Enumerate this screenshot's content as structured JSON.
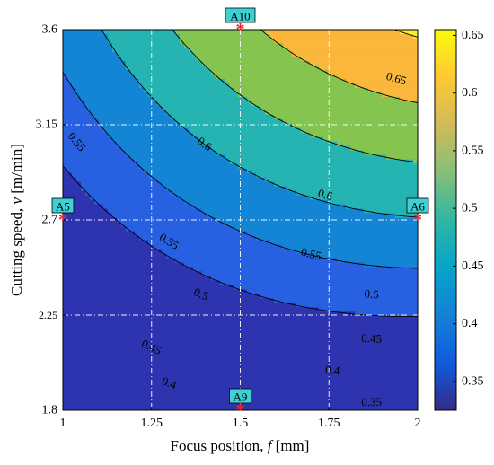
{
  "chart_data": {
    "type": "heatmap",
    "subtype": "filled-contour",
    "xlabel": "Focus position, ",
    "xlabel_var": "f",
    "xlabel_unit": "[mm]",
    "ylabel": "Cutting speed, ",
    "ylabel_var": "v",
    "ylabel_unit": "[m/min]",
    "xlim": [
      1,
      2
    ],
    "ylim": [
      1.8,
      3.6
    ],
    "x_ticks": [
      "1",
      "1.25",
      "1.5",
      "1.75",
      "2"
    ],
    "y_ticks": [
      "1.8",
      "2.25",
      "2.7",
      "3.15",
      "3.6"
    ],
    "grid": true,
    "colorbar": {
      "range": [
        0.325,
        0.655
      ],
      "ticks": [
        "0.35",
        "0.4",
        "0.45",
        "0.5",
        "0.55",
        "0.6",
        "0.65"
      ],
      "colormap": "parula"
    },
    "contour_levels": [
      0.35,
      0.4,
      0.45,
      0.5,
      0.55,
      0.6,
      0.65
    ],
    "contour_labels": [
      {
        "text": "0.35",
        "level": 0.35,
        "x": 1.87,
        "y": 1.84
      },
      {
        "text": "0.4",
        "level": 0.4,
        "x": 1.3,
        "y": 1.93
      },
      {
        "text": "0.4",
        "level": 0.4,
        "x": 1.76,
        "y": 1.99
      },
      {
        "text": "0.45",
        "level": 0.45,
        "x": 1.25,
        "y": 2.1
      },
      {
        "text": "0.45",
        "level": 0.45,
        "x": 1.87,
        "y": 2.14
      },
      {
        "text": "0.5",
        "level": 0.5,
        "x": 1.39,
        "y": 2.35
      },
      {
        "text": "0.5",
        "level": 0.5,
        "x": 1.87,
        "y": 2.35
      },
      {
        "text": "0.55",
        "level": 0.55,
        "x": 1.3,
        "y": 2.6
      },
      {
        "text": "0.55",
        "level": 0.55,
        "x": 1.7,
        "y": 2.54
      },
      {
        "text": "0.55",
        "level": 0.55,
        "x": 1.04,
        "y": 3.07
      },
      {
        "text": "0.6",
        "level": 0.6,
        "x": 1.74,
        "y": 2.82
      },
      {
        "text": "0.6",
        "level": 0.6,
        "x": 1.4,
        "y": 3.06
      },
      {
        "text": "0.65",
        "level": 0.65,
        "x": 1.94,
        "y": 3.37
      }
    ],
    "design_points": [
      {
        "label": "A5",
        "x": 1.0,
        "y": 2.7
      },
      {
        "label": "A6",
        "x": 2.0,
        "y": 2.7
      },
      {
        "label": "A9",
        "x": 1.5,
        "y": 1.8
      },
      {
        "label": "A10",
        "x": 1.5,
        "y": 3.6
      }
    ]
  }
}
